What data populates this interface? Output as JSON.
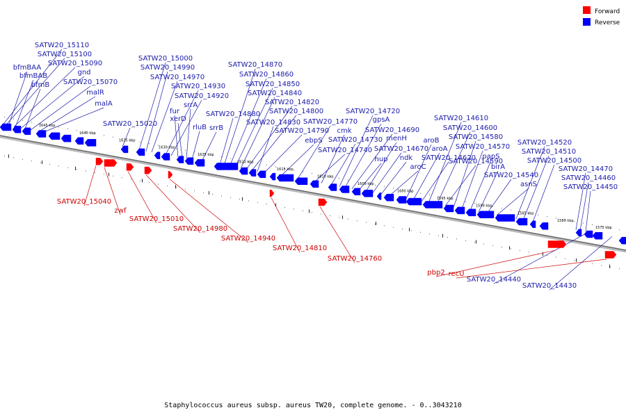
{
  "caption": "Staphylococcus aureus subsp. aureus TW20, complete genome. - 0..3043210",
  "legend": [
    {
      "label": "Forward",
      "color": "#ff0000"
    },
    {
      "label": "Reverse",
      "color": "#0000ff"
    }
  ],
  "colors": {
    "forward": "#ff0000",
    "reverse": "#0000ff",
    "backbone": "#888888",
    "label_forward": "#cc0000",
    "label_reverse": "#1a1aaa"
  },
  "chart_data": {
    "type": "genome-map",
    "ticks": [
      "1575 kbp",
      "1580 kbp",
      "1585 kbp",
      "1590 kbp",
      "1595 kbp",
      "1600 kbp",
      "1605 kbp",
      "1610 kbp",
      "1615 kbp",
      "1620 kbp",
      "1625 kbp",
      "1630 kbp",
      "1635 kbp",
      "1640 kbp",
      "1645 kbp"
    ],
    "reverse_genes": [
      "SATW20_15110",
      "SATW20_15100",
      "bfmBAA",
      "SATW20_15090",
      "bfmBAB",
      "gnd",
      "bfmB",
      "SATW20_15070",
      "malR",
      "malA",
      "SATW20_15020",
      "SATW20_15000",
      "SATW20_14990",
      "SATW20_14970",
      "SATW20_14930",
      "SATW20_14920",
      "fur",
      "xerD",
      "srrA",
      "rluB",
      "srrB",
      "SATW20_14880",
      "SATW20_14870",
      "SATW20_14860",
      "SATW20_14850",
      "SATW20_14840",
      "SATW20_14820",
      "SATW20_14800",
      "SATW20_14830",
      "SATW20_14790",
      "ebpS",
      "SATW20_14770",
      "SATW20_14740",
      "cmk",
      "SATW20_14730",
      "SATW20_14720",
      "gpsA",
      "SATW20_14690",
      "hup",
      "menH",
      "SATW20_14670",
      "ndk",
      "aroC",
      "aroB",
      "aroA",
      "SATW20_14620",
      "SATW20_14610",
      "SATW20_14600",
      "SATW20_14590",
      "SATW20_14580",
      "SATW20_14570",
      "papS",
      "birA",
      "SATW20_14540",
      "asnS",
      "SATW20_14520",
      "SATW20_14510",
      "SATW20_14500",
      "SATW20_14470",
      "SATW20_14460",
      "SATW20_14450",
      "SATW20_14440",
      "SATW20_14430"
    ],
    "forward_genes": [
      "SATW20_15040",
      "zwf",
      "SATW20_15010",
      "SATW20_14980",
      "SATW20_14940",
      "SATW20_14810",
      "SATW20_14760",
      "pbp2",
      "recU"
    ]
  }
}
